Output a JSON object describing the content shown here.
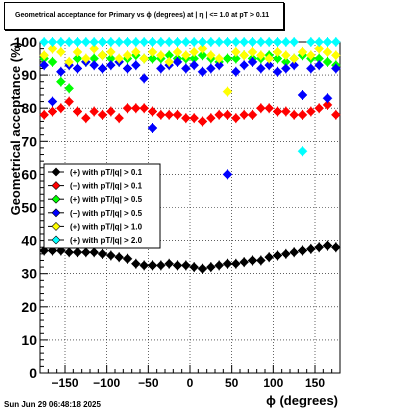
{
  "title": "Geometrical acceptance for Primary vs ϕ (degrees) at |  η  | <= 1.0 at pT > 0.11",
  "timestamp": "Sun Jun 29 06:48:18 2025",
  "chart_data": {
    "type": "scatter",
    "title": "Geometrical acceptance for Primary vs ϕ (degrees) at |  η  | <= 1.0 at pT > 0.11",
    "xlabel": "ϕ (degrees)",
    "ylabel": "Geometrical acceptance (%)",
    "xlim": [
      -180,
      180
    ],
    "ylim": [
      0,
      100
    ],
    "x_ticks": [
      -150,
      -100,
      -50,
      0,
      50,
      100,
      150
    ],
    "x_tick_labels": [
      "−150",
      "−100",
      "−50",
      "0",
      "50",
      "100",
      "150"
    ],
    "y_ticks": [
      0,
      10,
      20,
      30,
      40,
      50,
      60,
      70,
      80,
      90,
      100
    ],
    "grid": true,
    "legend_position": "middle-left",
    "series": [
      {
        "name": "(+) with pT/|q| > 0.1",
        "color": "#000000",
        "marker": "diamond",
        "x": [
          -175,
          -165,
          -155,
          -145,
          -135,
          -125,
          -115,
          -105,
          -95,
          -85,
          -75,
          -65,
          -55,
          -45,
          -35,
          -25,
          -15,
          -5,
          5,
          15,
          25,
          35,
          45,
          55,
          65,
          75,
          85,
          95,
          105,
          115,
          125,
          135,
          145,
          155,
          165,
          175
        ],
        "values": [
          37,
          37,
          37,
          36.5,
          36.5,
          36.5,
          36.5,
          36,
          35.5,
          35,
          34.5,
          33,
          32.5,
          32.5,
          32.5,
          33,
          32.5,
          32.5,
          32,
          31.5,
          32,
          32.5,
          33,
          33,
          33.5,
          34,
          34,
          35,
          35.5,
          36,
          36.5,
          37,
          37.5,
          38,
          38.5,
          38
        ]
      },
      {
        "name": "(−) with pT/|q| > 0.1",
        "color": "#ff0000",
        "marker": "diamond",
        "x": [
          -175,
          -165,
          -155,
          -145,
          -135,
          -125,
          -115,
          -105,
          -95,
          -85,
          -75,
          -65,
          -55,
          -45,
          -35,
          -25,
          -15,
          -5,
          5,
          15,
          25,
          35,
          45,
          55,
          65,
          75,
          85,
          95,
          105,
          115,
          125,
          135,
          145,
          155,
          165,
          175
        ],
        "values": [
          78,
          79,
          80,
          82,
          79,
          77,
          79,
          78,
          79,
          77,
          80,
          80,
          80,
          79,
          78,
          78,
          78,
          77,
          77,
          76,
          77,
          78,
          78,
          77,
          78,
          78,
          80,
          80,
          79,
          79,
          78,
          78,
          79,
          80,
          81,
          78
        ]
      },
      {
        "name": "(+) with pT/|q| > 0.5",
        "color": "#00ff00",
        "marker": "diamond",
        "x": [
          -175,
          -165,
          -155,
          -145,
          -135,
          -125,
          -115,
          -105,
          -95,
          -85,
          -75,
          -65,
          -55,
          -45,
          -35,
          -25,
          -15,
          -5,
          5,
          15,
          25,
          35,
          45,
          55,
          65,
          75,
          85,
          95,
          105,
          115,
          125,
          135,
          145,
          155,
          165,
          175
        ],
        "values": [
          95,
          94,
          88,
          86,
          95,
          94,
          95,
          96,
          95,
          94,
          95,
          96,
          95,
          95,
          95,
          96,
          95,
          95,
          95,
          96,
          95,
          94,
          95,
          95,
          96,
          95,
          95,
          96,
          95,
          94,
          95,
          96,
          95,
          95,
          94,
          93
        ]
      },
      {
        "name": "(−) with pT/|q| > 0.5",
        "color": "#0000ff",
        "marker": "diamond",
        "x": [
          -175,
          -165,
          -155,
          -145,
          -135,
          -125,
          -115,
          -105,
          -95,
          -85,
          -75,
          -65,
          -55,
          -45,
          -35,
          -25,
          -15,
          -5,
          5,
          15,
          25,
          35,
          45,
          55,
          65,
          75,
          85,
          95,
          105,
          115,
          125,
          135,
          145,
          155,
          165,
          175
        ],
        "values": [
          93,
          82,
          91,
          93,
          92,
          94,
          93,
          92,
          93,
          94,
          92,
          93,
          89,
          74,
          92,
          93,
          94,
          92,
          93,
          91,
          92,
          93,
          60,
          91,
          93,
          94,
          92,
          93,
          91,
          92,
          93,
          84,
          92,
          93,
          83,
          92
        ]
      },
      {
        "name": "(+) with pT/|q| > 1.0",
        "color": "#ffff00",
        "marker": "diamond",
        "x": [
          -175,
          -165,
          -155,
          -145,
          -135,
          -125,
          -115,
          -105,
          -95,
          -85,
          -75,
          -65,
          -55,
          -45,
          -35,
          -25,
          -15,
          -5,
          5,
          15,
          25,
          35,
          45,
          55,
          65,
          75,
          85,
          95,
          105,
          115,
          125,
          135,
          145,
          155,
          165,
          175
        ],
        "values": [
          96,
          98,
          97,
          94,
          97,
          95,
          98,
          96,
          97,
          95,
          96,
          97,
          95,
          97,
          96,
          94,
          97,
          96,
          97,
          98,
          96,
          95,
          85,
          97,
          96,
          97,
          96,
          95,
          97,
          96,
          95,
          97,
          96,
          98,
          97,
          96
        ]
      },
      {
        "name": "(+) with pT/|q| > 2.0",
        "color": "#00ffff",
        "marker": "diamond",
        "x": [
          -175,
          -165,
          -155,
          -145,
          -135,
          -125,
          -115,
          -105,
          -95,
          -85,
          -75,
          -65,
          -55,
          -45,
          -35,
          -25,
          -15,
          -5,
          5,
          15,
          25,
          35,
          45,
          55,
          65,
          75,
          85,
          95,
          105,
          115,
          125,
          135,
          145,
          155,
          165,
          175
        ],
        "values": [
          100,
          100,
          100,
          100,
          100,
          100,
          100,
          100,
          100,
          100,
          100,
          100,
          100,
          100,
          100,
          100,
          100,
          100,
          100,
          100,
          100,
          100,
          100,
          100,
          100,
          100,
          100,
          100,
          100,
          100,
          100,
          67,
          100,
          100,
          100,
          100
        ]
      }
    ]
  }
}
